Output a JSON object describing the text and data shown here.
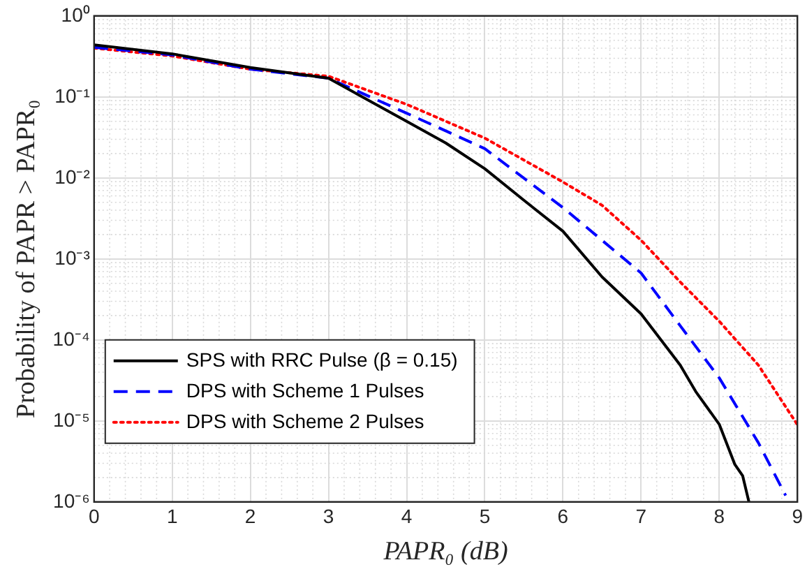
{
  "chart_data": {
    "type": "line",
    "xlabel": "PAPR₀ (dB)",
    "ylabel": "Probability of PAPR > PAPR₀",
    "x": [
      0,
      1,
      2,
      3,
      4,
      4.5,
      5,
      5.5,
      6,
      6.5,
      7,
      7.5,
      7.7,
      8,
      8.2,
      8.3,
      8.38
    ],
    "series": [
      {
        "name": "SPS with RRC Pulse (β = 0.15)",
        "color": "#000000",
        "line_style": "solid",
        "values": [
          0.44,
          0.34,
          0.23,
          0.17,
          0.05,
          0.027,
          0.013,
          0.0053,
          0.0022,
          0.0006,
          0.00021,
          4.9e-05,
          2.3e-05,
          9.1e-06,
          2.9e-06,
          2.1e-06,
          1e-06
        ]
      },
      {
        "name": "DPS with Scheme 1 Pulses",
        "color": "#0000ff",
        "line_style": "dashed",
        "x": [
          0,
          1,
          2,
          3,
          4,
          5,
          6,
          6.5,
          7,
          7.5,
          8,
          8.5,
          8.85
        ],
        "values": [
          0.41,
          0.33,
          0.22,
          0.17,
          0.063,
          0.023,
          0.0043,
          0.0017,
          0.00067,
          0.00015,
          3.4e-05,
          5.4e-06,
          1.2e-06
        ]
      },
      {
        "name": "DPS with Scheme 2 Pulses",
        "color": "#ff0000",
        "line_style": "dotted",
        "x": [
          0,
          1,
          2,
          3,
          4,
          5,
          6,
          6.5,
          7,
          7.5,
          8,
          8.5,
          9
        ],
        "values": [
          0.4,
          0.32,
          0.22,
          0.18,
          0.081,
          0.031,
          0.0089,
          0.0046,
          0.0017,
          0.00052,
          0.00017,
          4.9e-05,
          9e-06
        ]
      }
    ],
    "log": "y",
    "grid": true,
    "legend": "bottom left",
    "marker": "none",
    "xlim": [
      0,
      9
    ],
    "xticks": [
      0,
      1,
      2,
      3,
      4,
      5,
      6,
      7,
      8,
      9
    ],
    "ylim": [
      1e-06,
      1
    ],
    "yticks": [
      {
        "value": 1e-06,
        "label": "10⁻⁶"
      },
      {
        "value": 1e-05,
        "label": "10⁻⁵"
      },
      {
        "value": 0.0001,
        "label": "10⁻⁴"
      },
      {
        "value": 0.001,
        "label": "10⁻³"
      },
      {
        "value": 0.01,
        "label": "10⁻²"
      },
      {
        "value": 0.1,
        "label": "10⁻¹"
      },
      {
        "value": 1,
        "label": "10⁰"
      }
    ]
  }
}
